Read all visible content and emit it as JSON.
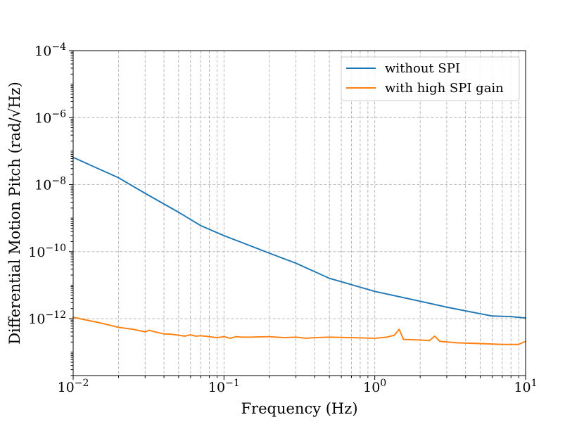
{
  "chart_data": {
    "type": "line",
    "xscale": "log",
    "yscale": "log",
    "xlabel": "Frequency (Hz)",
    "ylabel": "Differential Motion Pitch (rad/√Hz)",
    "xlim": [
      0.01,
      10
    ],
    "ylim_log10": [
      -13.7,
      -4
    ],
    "grid": "both major and minor",
    "legend_position": "upper right",
    "x_major_ticks": [
      {
        "value": 0.01,
        "base": "10",
        "exp": "−2"
      },
      {
        "value": 0.1,
        "base": "10",
        "exp": "−1"
      },
      {
        "value": 1,
        "base": "10",
        "exp": "0"
      },
      {
        "value": 10,
        "base": "10",
        "exp": "1"
      }
    ],
    "y_major_ticks": [
      {
        "value": 1e-12,
        "base": "10",
        "exp": "−12"
      },
      {
        "value": 1e-10,
        "base": "10",
        "exp": "−10"
      },
      {
        "value": 1e-08,
        "base": "10",
        "exp": "−8"
      },
      {
        "value": 1e-06,
        "base": "10",
        "exp": "−6"
      },
      {
        "value": 0.0001,
        "base": "10",
        "exp": "−4"
      }
    ],
    "series": [
      {
        "name": "without SPI",
        "color": "#1f77b4",
        "x": [
          0.01,
          0.02,
          0.03,
          0.05,
          0.07,
          0.1,
          0.2,
          0.3,
          0.5,
          1,
          2,
          3,
          5,
          6,
          8,
          10
        ],
        "y": [
          6.5e-08,
          1.6e-08,
          5.5e-09,
          1.5e-09,
          6e-10,
          3e-10,
          9e-11,
          4.5e-11,
          1.6e-11,
          6.5e-12,
          3.3e-12,
          2.2e-12,
          1.4e-12,
          1.2e-12,
          1.15e-12,
          1.05e-12
        ]
      },
      {
        "name": "with high SPI gain",
        "color": "#ff7f0e",
        "x": [
          0.01,
          0.015,
          0.02,
          0.025,
          0.03,
          0.032,
          0.035,
          0.04,
          0.045,
          0.05,
          0.055,
          0.06,
          0.065,
          0.07,
          0.08,
          0.09,
          0.1,
          0.11,
          0.12,
          0.13,
          0.15,
          0.2,
          0.25,
          0.3,
          0.35,
          0.4,
          0.5,
          0.7,
          1.0,
          1.2,
          1.35,
          1.45,
          1.55,
          2.0,
          2.3,
          2.5,
          2.7,
          3.5,
          5,
          7,
          9,
          10
        ],
        "y": [
          1.1e-12,
          7.5e-13,
          5.5e-13,
          4.8e-13,
          4e-13,
          4.5e-13,
          4e-13,
          3.5e-13,
          3.4e-13,
          3.2e-13,
          3e-13,
          3.3e-13,
          3e-13,
          3.1e-13,
          2.9e-13,
          2.7e-13,
          2.9e-13,
          2.6e-13,
          2.9e-13,
          2.8e-13,
          2.8e-13,
          2.9e-13,
          2.7e-13,
          2.8e-13,
          2.6e-13,
          2.7e-13,
          2.8e-13,
          2.7e-13,
          2.6e-13,
          2.8e-13,
          3.2e-13,
          4.8e-13,
          2.4e-13,
          2.3e-13,
          2.2e-13,
          3e-13,
          2.1e-13,
          1.9e-13,
          1.8e-13,
          1.7e-13,
          1.7e-13,
          2.1e-13
        ]
      }
    ]
  }
}
